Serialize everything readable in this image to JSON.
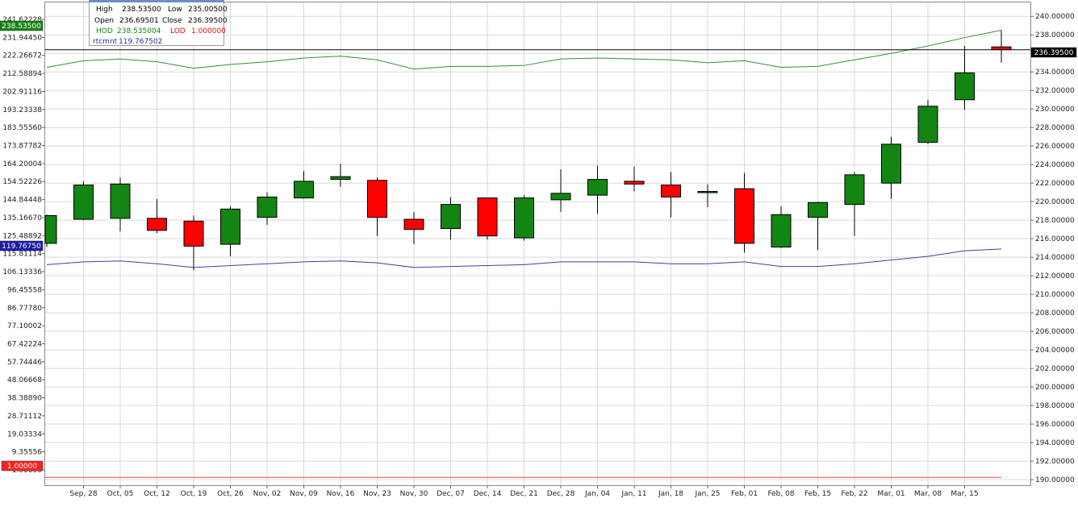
{
  "legend_box": {
    "high_label": "High",
    "high_value": "238.53500",
    "low_label": "Low",
    "low_value": "235.00500",
    "open_label": "Open",
    "open_value": "236.69501",
    "close_label": "Close",
    "close_value": "236.39500",
    "hod_label": "HOD",
    "hod_value": "238.535004",
    "lod_label": "LOD",
    "lod_value": "1.000000",
    "rtcmnt_label": "rtcmnt",
    "rtcmnt_value": "119.767502"
  },
  "colors": {
    "up": "#138513",
    "down": "#ff0000",
    "hod_line": "#3a8c3a",
    "rtcmnt_line": "#3f3fa0",
    "lod_line": "#ff4040",
    "close_line": "#000000",
    "grid": "#d9d9d9"
  },
  "chart_data": {
    "type": "candlestick",
    "x_ticks": [
      "Sep, 28",
      "Oct, 05",
      "Oct, 12",
      "Oct, 19",
      "Oct, 26",
      "Nov, 02",
      "Nov, 09",
      "Nov, 16",
      "Nov, 23",
      "Nov, 30",
      "Dec, 07",
      "Dec, 14",
      "Dec, 21",
      "Dec, 28",
      "Jan, 04",
      "Jan, 11",
      "Jan, 18",
      "Jan, 25",
      "Feb, 01",
      "Feb, 08",
      "Feb, 15",
      "Feb, 22",
      "Mar, 01",
      "Mar, 08",
      "Mar, 15"
    ],
    "right_axis": {
      "ylim": [
        189.4,
        241.5
      ],
      "ticks": [
        "190.00000",
        "192.00000",
        "194.00000",
        "196.00000",
        "198.00000",
        "200.00000",
        "202.00000",
        "204.00000",
        "206.00000",
        "208.00000",
        "210.00000",
        "212.00000",
        "214.00000",
        "216.00000",
        "218.00000",
        "220.00000",
        "222.00000",
        "224.00000",
        "226.00000",
        "228.00000",
        "230.00000",
        "232.00000",
        "234.00000",
        "236.00000",
        "238.00000",
        "240.00000"
      ],
      "last_close_label": "236.39500"
    },
    "left_axis": {
      "ticks": [
        "1.00000",
        "9.35556",
        "19.03334",
        "28.71112",
        "38.38890",
        "48.06668",
        "57.74446",
        "67.42224",
        "77.10002",
        "86.77780",
        "96.45558",
        "106.13336",
        "115.81114",
        "125.48892",
        "135.16670",
        "144.84448",
        "154.52226",
        "164.20004",
        "173.87782",
        "183.55560",
        "193.23338",
        "202.91116",
        "212.58894",
        "222.26672",
        "231.94450",
        "241.62228"
      ],
      "hod_label": "238.53500",
      "rtcmnt_label": "119.76750",
      "lod_label": "1.00000"
    },
    "candles": [
      {
        "x": "Sep, 21",
        "open": 215.5,
        "high": 218.6,
        "low": 215.1,
        "close": 218.5
      },
      {
        "x": "Sep, 28",
        "open": 218.1,
        "high": 222.2,
        "low": 218.0,
        "close": 221.8
      },
      {
        "x": "Oct, 05",
        "open": 218.2,
        "high": 222.6,
        "low": 216.8,
        "close": 221.9
      },
      {
        "x": "Oct, 12",
        "open": 218.2,
        "high": 220.3,
        "low": 216.6,
        "close": 216.9
      },
      {
        "x": "Oct, 19",
        "open": 217.9,
        "high": 218.5,
        "low": 212.6,
        "close": 215.2
      },
      {
        "x": "Oct, 26",
        "open": 215.4,
        "high": 219.5,
        "low": 214.1,
        "close": 219.2
      },
      {
        "x": "Nov, 02",
        "open": 218.3,
        "high": 221.0,
        "low": 217.5,
        "close": 220.5
      },
      {
        "x": "Nov, 09",
        "open": 220.4,
        "high": 223.3,
        "low": 220.3,
        "close": 222.2
      },
      {
        "x": "Nov, 16",
        "open": 222.4,
        "high": 224.1,
        "low": 221.6,
        "close": 222.7
      },
      {
        "x": "Nov, 23",
        "open": 222.3,
        "high": 222.6,
        "low": 216.3,
        "close": 218.3
      },
      {
        "x": "Nov, 30",
        "open": 218.1,
        "high": 218.9,
        "low": 215.4,
        "close": 217.0
      },
      {
        "x": "Dec, 07",
        "open": 217.1,
        "high": 220.5,
        "low": 215.9,
        "close": 219.7
      },
      {
        "x": "Dec, 14",
        "open": 220.4,
        "high": 220.4,
        "low": 215.9,
        "close": 216.3
      },
      {
        "x": "Dec, 21",
        "open": 216.1,
        "high": 220.7,
        "low": 215.8,
        "close": 220.4
      },
      {
        "x": "Dec, 28",
        "open": 220.2,
        "high": 223.5,
        "low": 218.9,
        "close": 220.9
      },
      {
        "x": "Jan, 04",
        "open": 220.7,
        "high": 223.9,
        "low": 218.7,
        "close": 222.4
      },
      {
        "x": "Jan, 11",
        "open": 222.2,
        "high": 223.8,
        "low": 221.1,
        "close": 221.9
      },
      {
        "x": "Jan, 18",
        "open": 221.8,
        "high": 223.2,
        "low": 218.3,
        "close": 220.5
      },
      {
        "x": "Jan, 25",
        "open": 221.0,
        "high": 221.9,
        "low": 219.4,
        "close": 221.1
      },
      {
        "x": "Feb, 01",
        "open": 221.4,
        "high": 223.1,
        "low": 214.5,
        "close": 215.5
      },
      {
        "x": "Feb, 08",
        "open": 215.1,
        "high": 219.5,
        "low": 215.0,
        "close": 218.6
      },
      {
        "x": "Feb, 15",
        "open": 218.3,
        "high": 220.0,
        "low": 214.8,
        "close": 219.9
      },
      {
        "x": "Feb, 22",
        "open": 219.7,
        "high": 223.2,
        "low": 216.3,
        "close": 222.9
      },
      {
        "x": "Mar, 01",
        "open": 222.0,
        "high": 227.0,
        "low": 220.3,
        "close": 226.2
      },
      {
        "x": "Mar, 08",
        "open": 226.4,
        "high": 231.0,
        "low": 226.2,
        "close": 230.3
      },
      {
        "x": "Mar, 15",
        "open": 231.0,
        "high": 236.8,
        "low": 229.9,
        "close": 233.9
      },
      {
        "x": "Mar, 22",
        "open": 236.7,
        "high": 238.5,
        "low": 235.0,
        "close": 236.4
      }
    ],
    "hod_series": [
      234.5,
      235.2,
      235.4,
      235.1,
      234.4,
      234.8,
      235.1,
      235.5,
      235.7,
      235.3,
      234.3,
      234.6,
      234.6,
      234.7,
      235.4,
      235.5,
      235.4,
      235.3,
      235.0,
      235.2,
      234.5,
      234.6,
      235.3,
      236.0,
      236.8,
      237.7,
      238.5
    ],
    "rtcmnt_series": [
      213.2,
      213.5,
      213.6,
      213.3,
      212.9,
      213.1,
      213.3,
      213.5,
      213.6,
      213.4,
      212.9,
      213.0,
      213.1,
      213.2,
      213.5,
      213.5,
      213.5,
      213.3,
      213.3,
      213.5,
      213.0,
      213.0,
      213.3,
      213.7,
      214.1,
      214.7,
      214.9
    ],
    "lod_value": 190.25,
    "close_line_value": 236.39
  }
}
